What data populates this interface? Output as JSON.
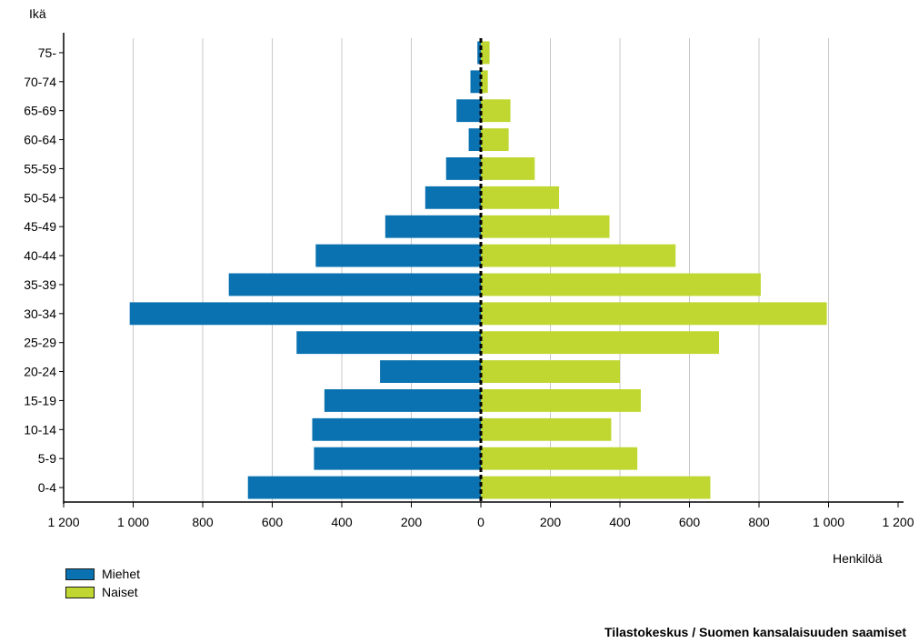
{
  "chart_data": {
    "type": "bar",
    "title": "",
    "ylabel": "Ikä",
    "xlabel": "Henkilöä",
    "categories": [
      "0-4",
      "5-9",
      "10-14",
      "15-19",
      "20-24",
      "25-29",
      "30-34",
      "35-39",
      "40-44",
      "45-49",
      "50-54",
      "55-59",
      "60-64",
      "65-69",
      "70-74",
      "75-"
    ],
    "series": [
      {
        "name": "Miehet",
        "color": "#0a72b0",
        "values": [
          670,
          480,
          485,
          450,
          290,
          530,
          1010,
          725,
          475,
          275,
          160,
          100,
          35,
          70,
          30,
          10
        ]
      },
      {
        "name": "Naiset",
        "color": "#bfd730",
        "values": [
          660,
          450,
          375,
          460,
          400,
          685,
          995,
          805,
          560,
          370,
          225,
          155,
          80,
          85,
          20,
          25
        ]
      }
    ],
    "xlim": [
      -1200,
      1200
    ],
    "xticks": [
      "1 200",
      "1 000",
      "800",
      "600",
      "400",
      "200",
      "0",
      "200",
      "400",
      "600",
      "800",
      "1 000",
      "1 200"
    ],
    "grid": true,
    "legend_position": "bottom-left"
  },
  "source": "Tilastokeskus / Suomen kansalaisuuden saamiset"
}
